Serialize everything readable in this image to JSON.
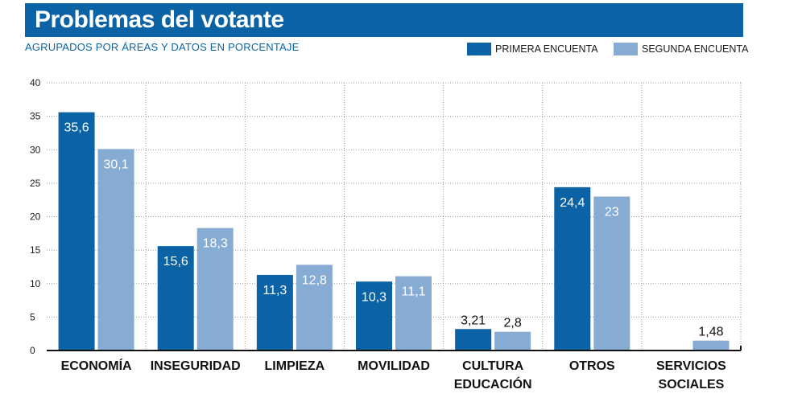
{
  "header": {
    "title": "Problemas del votante",
    "subtitle": "AGRUPADOS POR ÁREAS Y DATOS EN PORCENTAJE"
  },
  "colors": {
    "title_bg": "#0b63a5",
    "primera": "#0b63a5",
    "segunda": "#86acd4"
  },
  "chart_data": {
    "type": "bar",
    "title": "Problemas del votante",
    "subtitle": "AGRUPADOS POR ÁREAS Y DATOS EN PORCENTAJE",
    "categories": [
      [
        "ECONOMÍA"
      ],
      [
        "INSEGURIDAD"
      ],
      [
        "LIMPIEZA"
      ],
      [
        "MOVILIDAD"
      ],
      [
        "CULTURA",
        "EDUCACIÓN"
      ],
      [
        "OTROS"
      ],
      [
        "SERVICIOS",
        "SOCIALES"
      ]
    ],
    "series": [
      {
        "name": "PRIMERA ENCUENTA",
        "values": [
          35.6,
          15.6,
          11.3,
          10.3,
          3.21,
          24.4,
          null
        ],
        "labels": [
          "35,6",
          "15,6",
          "11,3",
          "10,3",
          "3,21",
          "24,4",
          ""
        ]
      },
      {
        "name": "SEGUNDA ENCUENTA",
        "values": [
          30.1,
          18.3,
          12.8,
          11.1,
          2.8,
          23,
          1.48
        ],
        "labels": [
          "30,1",
          "18,3",
          "12,8",
          "11,1",
          "2,8",
          "23",
          "1,48"
        ]
      }
    ],
    "ylim": [
      0,
      40
    ],
    "yticks": [
      0,
      5,
      10,
      15,
      20,
      25,
      30,
      35,
      40
    ],
    "grid": true,
    "legend_position": "top-right",
    "xlabel": "",
    "ylabel": ""
  }
}
